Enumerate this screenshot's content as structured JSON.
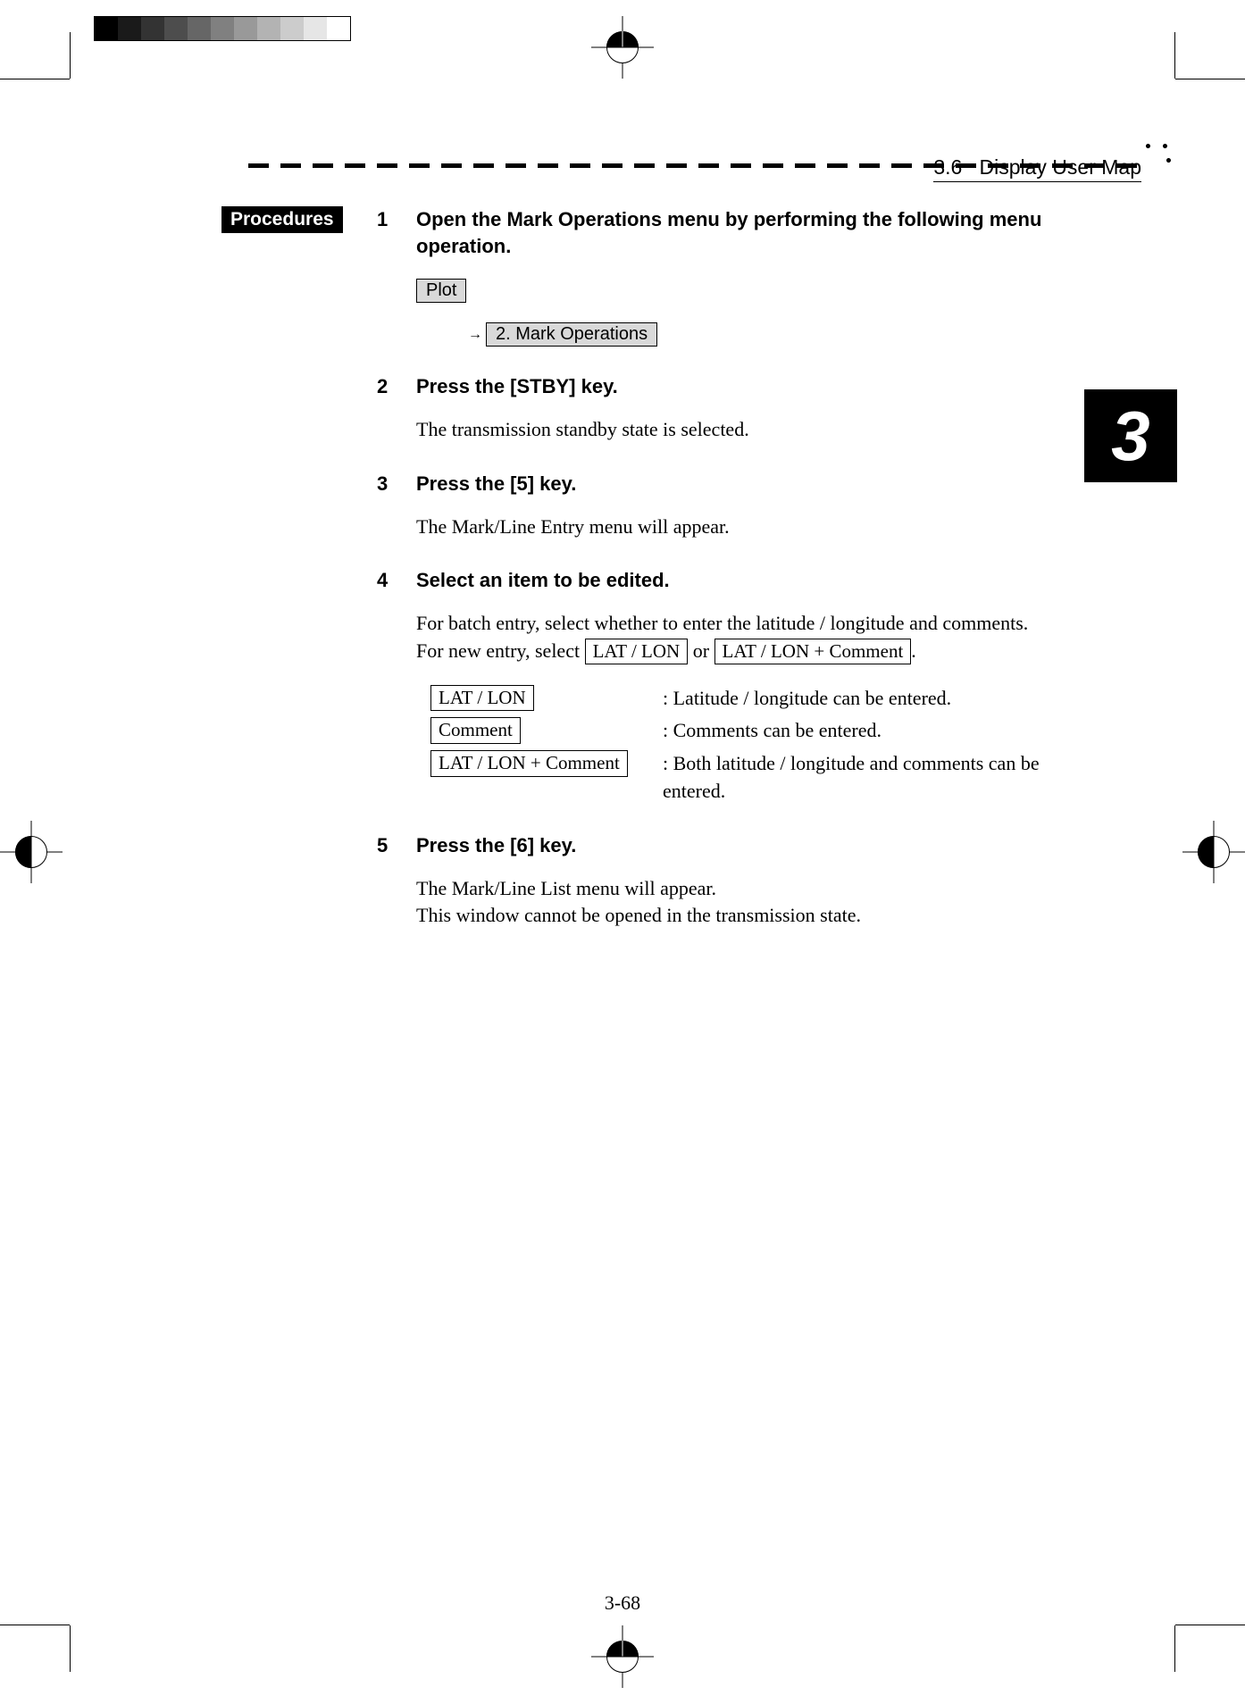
{
  "grayscale": [
    "#000000",
    "#1a1a1a",
    "#333333",
    "#4d4d4d",
    "#666666",
    "#808080",
    "#999999",
    "#b3b3b3",
    "#cccccc",
    "#e6e6e6",
    "#ffffff"
  ],
  "header": {
    "section": "3.6",
    "title": "Display User Map",
    "dots": "･ ･\n  ･"
  },
  "procedures_label": "Procedures",
  "tab_number": "3",
  "page_number": "3-68",
  "menu_path": {
    "root": "Plot",
    "arrow": "→",
    "child": "2. Mark Operations"
  },
  "steps": [
    {
      "num": "1",
      "title": "Open the Mark Operations menu by performing the following menu operation.",
      "has_menu_path": true
    },
    {
      "num": "2",
      "title": "Press the [STBY] key.",
      "body": "The transmission standby state is selected."
    },
    {
      "num": "3",
      "title": "Press the [5] key.",
      "body": "The Mark/Line Entry menu will appear."
    },
    {
      "num": "4",
      "title": "Select an item to be edited.",
      "body_pre": "For batch entry, select whether to enter the latitude / longitude and comments.    For new entry, select ",
      "body_box1": " LAT / LON ",
      "body_mid": "  or ",
      "body_box2": " LAT / LON + Comment ",
      "body_post": ".",
      "options": [
        {
          "label": "LAT / LON",
          "desc": ": Latitude / longitude can be entered."
        },
        {
          "label": "Comment",
          "desc": ": Comments can be entered."
        },
        {
          "label": "LAT / LON + Comment",
          "desc": ": Both latitude / longitude and comments can be entered."
        }
      ]
    },
    {
      "num": "5",
      "title": "Press the [6] key.",
      "body": "The Mark/Line List menu will appear.\nThis window cannot be opened in the transmission state."
    }
  ]
}
